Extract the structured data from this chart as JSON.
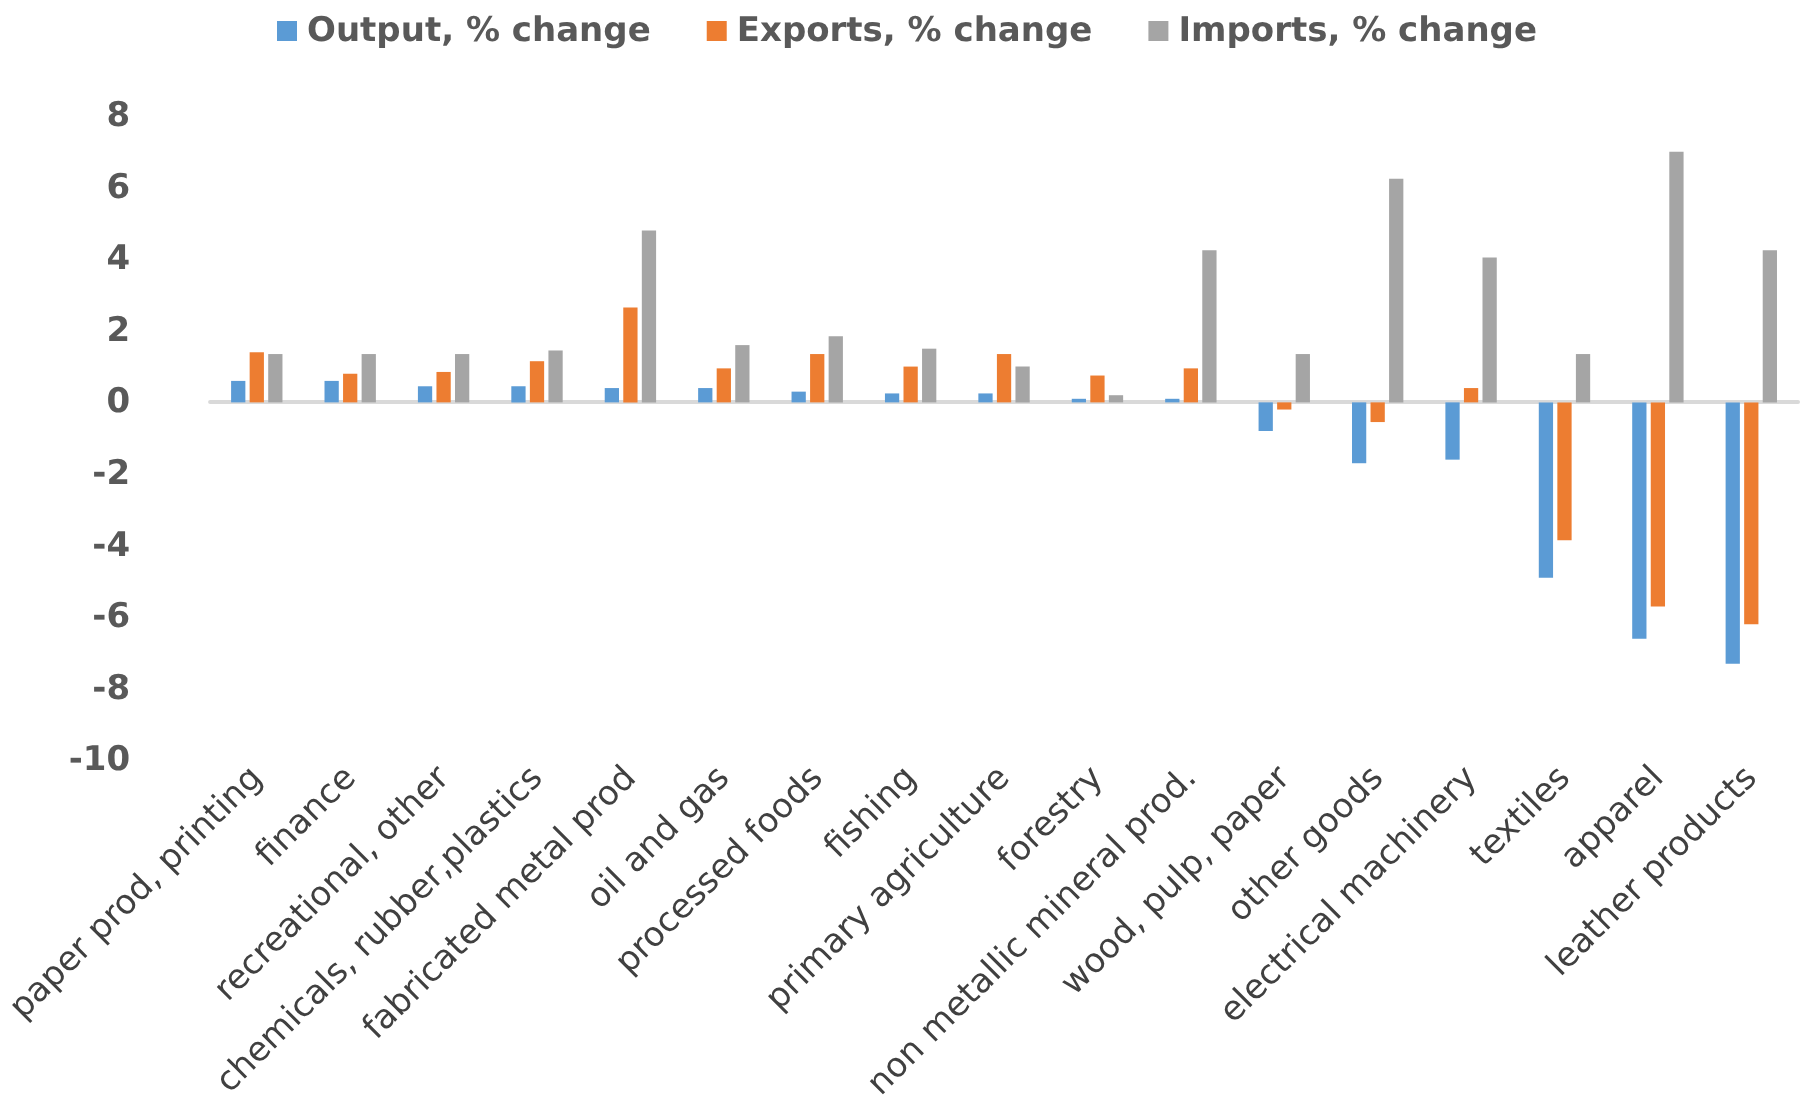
{
  "chart_data": {
    "type": "bar",
    "categories": [
      "paper prod, printing",
      "finance",
      "recreational, other",
      "chemicals, rubber,plastics",
      "fabricated metal prod",
      "oil and gas",
      "processed foods",
      "fishing",
      "primary agriculture",
      "forestry",
      "non metallic mineral prod.",
      "wood, pulp, paper",
      "other goods",
      "electrical machinery",
      "textiles",
      "apparel",
      "leather products"
    ],
    "series": [
      {
        "name": "Output, % change",
        "color": "#5b9bd5",
        "values": [
          0.6,
          0.6,
          0.45,
          0.45,
          0.4,
          0.4,
          0.3,
          0.25,
          0.25,
          0.1,
          0.1,
          -0.8,
          -1.7,
          -1.6,
          -4.9,
          -6.6,
          -7.3
        ]
      },
      {
        "name": "Exports, % change",
        "color": "#ed7d31",
        "values": [
          1.4,
          0.8,
          0.85,
          1.15,
          2.65,
          0.95,
          1.35,
          1.0,
          1.35,
          0.75,
          0.95,
          -0.2,
          -0.55,
          0.4,
          -3.85,
          -5.7,
          -6.2
        ]
      },
      {
        "name": "Imports, % change",
        "color": "#a5a5a5",
        "values": [
          1.35,
          1.35,
          1.35,
          1.45,
          4.8,
          1.6,
          1.85,
          1.5,
          1.0,
          0.2,
          4.25,
          1.35,
          6.25,
          4.05,
          1.35,
          7.0,
          4.25
        ]
      }
    ],
    "ylim": [
      -10,
      8
    ],
    "yticks": [
      -10,
      -8,
      -6,
      -4,
      -2,
      0,
      2,
      4,
      6,
      8
    ],
    "legend": "top"
  }
}
